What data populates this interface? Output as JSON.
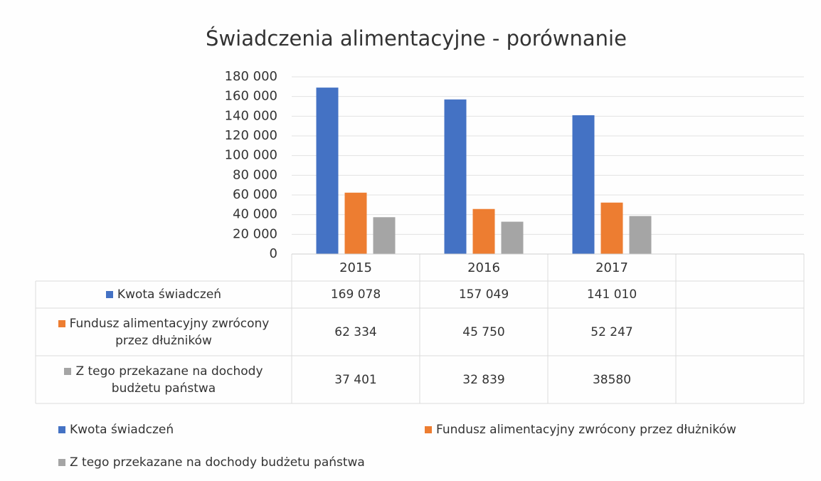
{
  "chart_data": {
    "type": "bar",
    "title": "Świadczenia alimentacyjne - porównanie",
    "categories": [
      "2015",
      "2016",
      "2017",
      null
    ],
    "series": [
      {
        "name": "Kwota świadczeń",
        "color": "#4472c4",
        "values": [
          169078,
          157049,
          141010,
          null
        ],
        "value_labels": [
          "169 078",
          "157 049",
          "141 010",
          null
        ]
      },
      {
        "name": "Fundusz alimentacyjny zwrócony przez dłużników",
        "color": "#ed7d31",
        "values": [
          62334,
          45750,
          52247,
          null
        ],
        "value_labels": [
          "62 334",
          "45 750",
          "52 247",
          null
        ]
      },
      {
        "name": "Z tego przekazane na dochody budżetu państwa",
        "color": "#a5a5a5",
        "values": [
          37401,
          32839,
          38580,
          null
        ],
        "value_labels": [
          "37 401",
          "32 839",
          "38580",
          null
        ]
      }
    ],
    "ylim": [
      0,
      180000
    ],
    "yticks": [
      0,
      {
        "value": 20000,
        "label": "20 000"
      },
      {
        "value": 40000,
        "label": "40 000"
      },
      {
        "value": 60000,
        "label": "60 000"
      },
      {
        "value": 80000,
        "label": "80 000"
      },
      {
        "value": 100000,
        "label": "100 000"
      },
      {
        "value": 120000,
        "label": "120 000"
      },
      {
        "value": 140000,
        "label": "140 000"
      },
      {
        "value": 160000,
        "label": "160 000"
      },
      {
        "value": 180000,
        "label": "180 000"
      }
    ],
    "grid": true,
    "data_table": true,
    "legend": "bottom"
  }
}
